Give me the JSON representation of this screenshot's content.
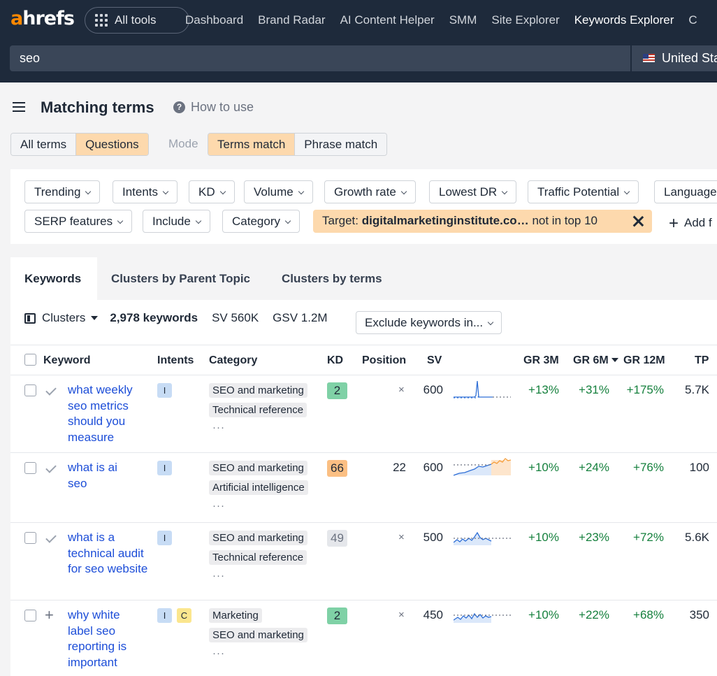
{
  "nav": {
    "logo_a": "a",
    "logo_rest": "hrefs",
    "all_tools": "All tools",
    "links": [
      "Dashboard",
      "Brand Radar",
      "AI Content Helper",
      "SMM",
      "Site Explorer",
      "Keywords Explorer",
      "C"
    ],
    "active_link": "Keywords Explorer",
    "search_value": "seo",
    "country": "United Sta"
  },
  "header": {
    "title": "Matching terms",
    "how_to": "How to use",
    "term_toggle": [
      "All terms",
      "Questions"
    ],
    "mode_label": "Mode",
    "mode_toggle": [
      "Terms match",
      "Phrase match"
    ]
  },
  "filters": {
    "row1": [
      "Trending",
      "Intents",
      "KD",
      "Volume",
      "Growth rate",
      "Lowest DR",
      "Traffic Potential",
      "Language"
    ],
    "row2": [
      "SERP features",
      "Include",
      "Category"
    ],
    "target_label": "Target:",
    "target_domain": "digitalmarketinginstitute.co…",
    "target_suffix": "not in top 10",
    "add_filter": "Add f"
  },
  "tabs": [
    "Keywords",
    "Clusters by Parent Topic",
    "Clusters by terms"
  ],
  "toolbar": {
    "clusters": "Clusters",
    "keyword_count": "2,978 keywords",
    "sv": "SV 560K",
    "gsv": "GSV 1.2M",
    "exclude": "Exclude keywords in..."
  },
  "table": {
    "headers": {
      "keyword": "Keyword",
      "intents": "Intents",
      "category": "Category",
      "kd": "KD",
      "position": "Position",
      "sv": "SV",
      "gr3": "GR 3M",
      "gr6": "GR 6M",
      "gr12": "GR 12M",
      "tp": "TP"
    },
    "rows": [
      {
        "keyword": "what weekly seo metrics should you measure",
        "intents": [
          "I"
        ],
        "categories": [
          "SEO and marketing",
          "Technical reference"
        ],
        "more": "···",
        "kd": "2",
        "kd_color": "#7fd1a6",
        "position": "×",
        "sv": "600",
        "gr3": "+13%",
        "gr6": "+31%",
        "gr12": "+175%",
        "tp": "5.7K",
        "icon": "check"
      },
      {
        "keyword": "what is ai seo",
        "intents": [
          "I"
        ],
        "categories": [
          "SEO and marketing",
          "Artificial intelligence"
        ],
        "more": "···",
        "kd": "66",
        "kd_color": "#fbbf83",
        "position": "22",
        "sv": "600",
        "gr3": "+10%",
        "gr6": "+24%",
        "gr12": "+76%",
        "tp": "100",
        "icon": "check"
      },
      {
        "keyword": "what is a technical audit for seo website",
        "intents": [
          "I"
        ],
        "categories": [
          "SEO and marketing",
          "Technical reference"
        ],
        "more": "···",
        "kd": "49",
        "kd_color": "#e5e7eb",
        "position": "×",
        "sv": "500",
        "gr3": "+10%",
        "gr6": "+23%",
        "gr12": "+72%",
        "tp": "5.6K",
        "icon": "check"
      },
      {
        "keyword": "why white label seo reporting is important",
        "intents": [
          "I",
          "C"
        ],
        "categories": [
          "Marketing",
          "SEO and marketing"
        ],
        "more": "···",
        "kd": "2",
        "kd_color": "#7fd1a6",
        "position": "×",
        "sv": "450",
        "gr3": "+10%",
        "gr6": "+22%",
        "gr12": "+68%",
        "tp": "350",
        "icon": "plus"
      }
    ]
  },
  "colors": {
    "nav_bg": "#1e2a3b",
    "accent": "#ff8800",
    "selected_toggle": "#fdd9ad",
    "link": "#1d4ed8",
    "growth": "#15803d"
  }
}
